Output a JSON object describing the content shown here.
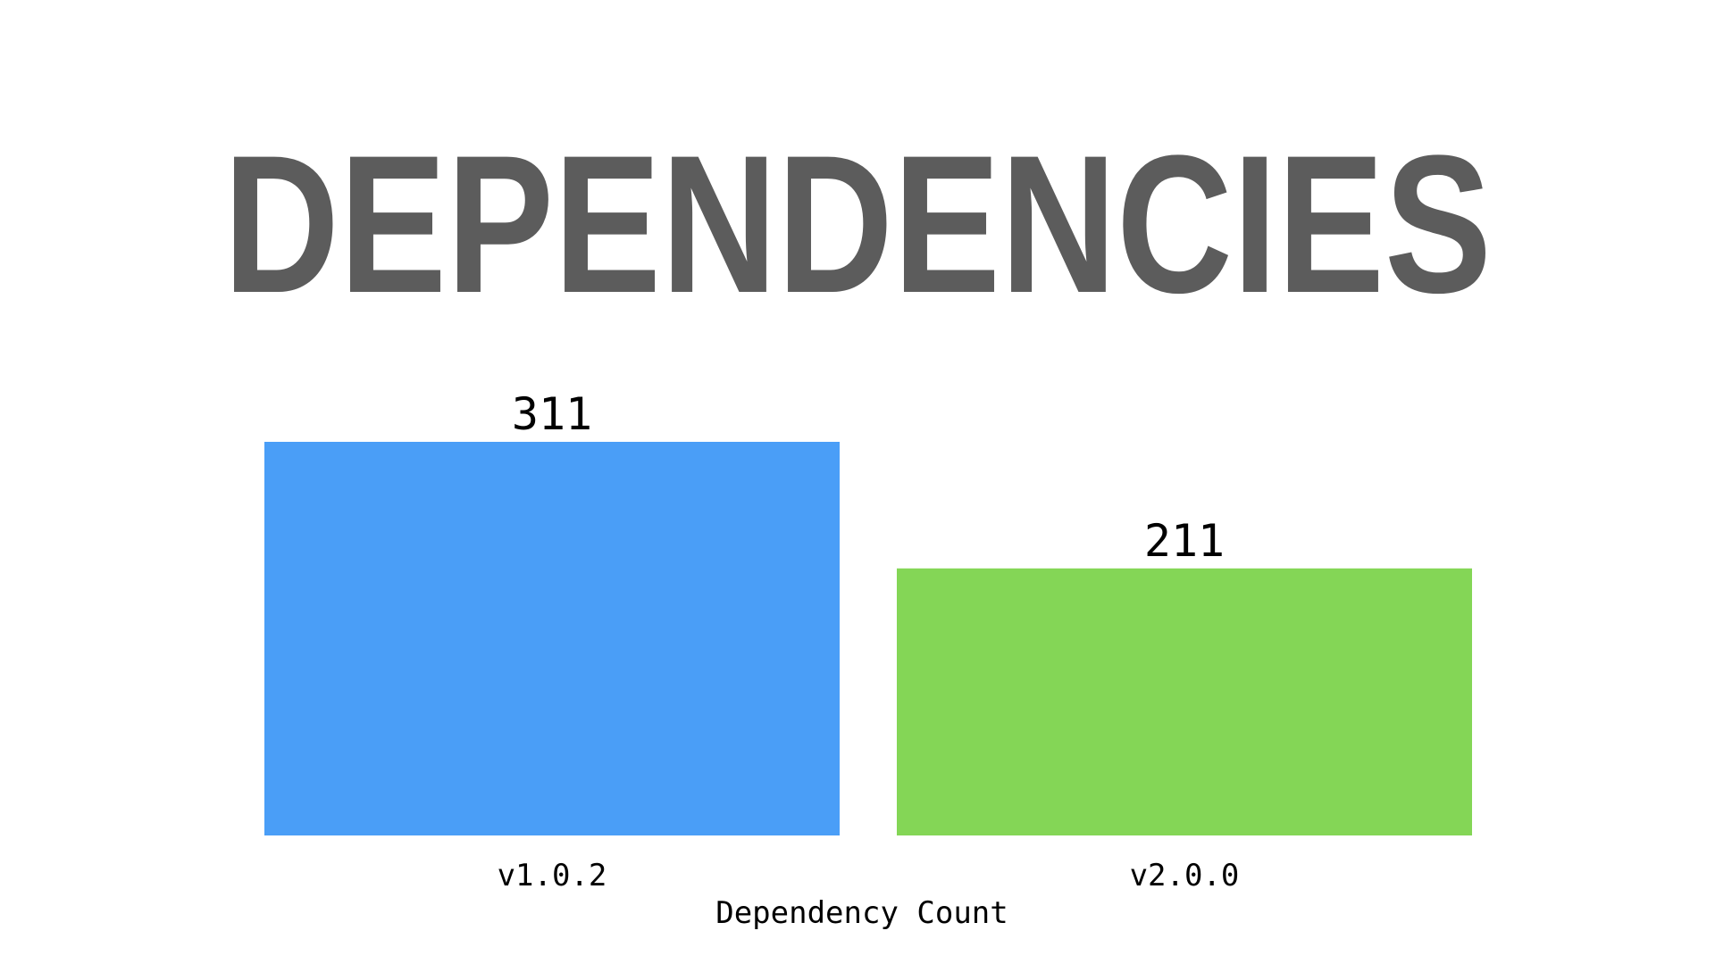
{
  "chart_data": {
    "type": "bar",
    "title": "DEPENDENCIES",
    "categories": [
      "v1.0.2",
      "v2.0.0"
    ],
    "values": [
      311,
      211
    ],
    "value_labels": [
      "311",
      "211"
    ],
    "xlabel": "Dependency Count",
    "ylabel": "",
    "ylim": [
      0,
      311
    ],
    "grid": false,
    "colors": [
      "#4a9ef7",
      "#84d656"
    ],
    "title_color": "#5c5c5c"
  }
}
